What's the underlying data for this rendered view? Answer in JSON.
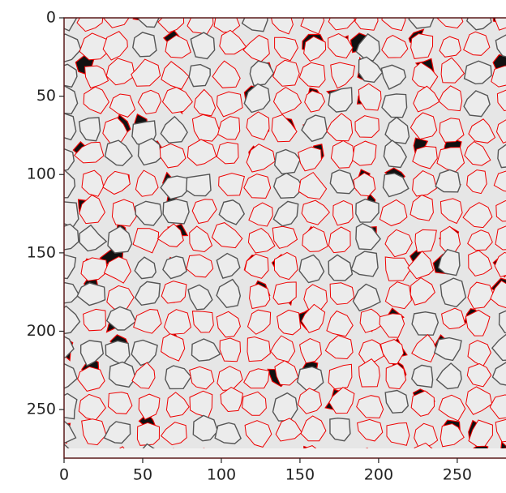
{
  "chart_data": {
    "type": "image",
    "xlim": [
      0,
      281
    ],
    "ylim": [
      281,
      0
    ],
    "xticks": [
      0,
      50,
      100,
      150,
      200,
      250
    ],
    "yticks": [
      0,
      50,
      100,
      150,
      200,
      250
    ]
  }
}
